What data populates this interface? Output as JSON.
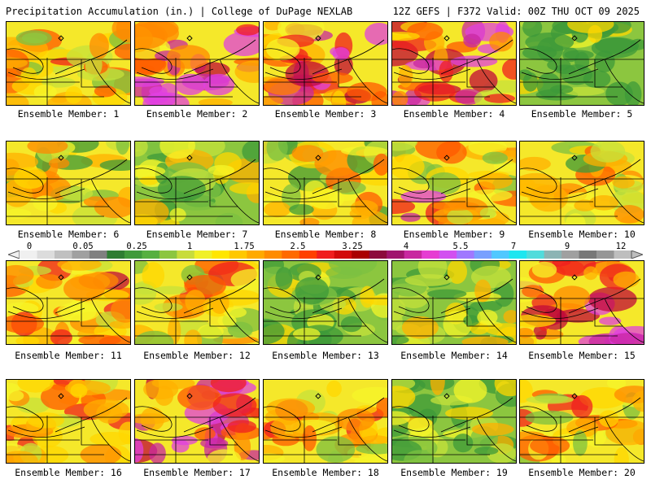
{
  "header": {
    "left_title": "Precipitation Accumulation (in.) | College of DuPage NEXLAB",
    "right_title": "12Z GEFS | F372 Valid: 00Z THU OCT 09 2025"
  },
  "members": [
    {
      "caption": "Ensemble Member: 1",
      "intensity": 0.55,
      "fill": "mixed"
    },
    {
      "caption": "Ensemble Member: 2",
      "intensity": 0.95,
      "fill": "heavy-band"
    },
    {
      "caption": "Ensemble Member: 3",
      "intensity": 0.9,
      "fill": "heavy-band"
    },
    {
      "caption": "Ensemble Member: 4",
      "intensity": 0.8,
      "fill": "heavy-band"
    },
    {
      "caption": "Ensemble Member: 5",
      "intensity": 0.15,
      "fill": "green"
    },
    {
      "caption": "Ensemble Member: 6",
      "intensity": 0.3,
      "fill": "mixed"
    },
    {
      "caption": "Ensemble Member: 7",
      "intensity": 0.3,
      "fill": "green"
    },
    {
      "caption": "Ensemble Member: 8",
      "intensity": 0.35,
      "fill": "mixed"
    },
    {
      "caption": "Ensemble Member: 9",
      "intensity": 0.5,
      "fill": "southwest-max"
    },
    {
      "caption": "Ensemble Member: 10",
      "intensity": 0.45,
      "fill": "mixed"
    },
    {
      "caption": "Ensemble Member: 11",
      "intensity": 0.7,
      "fill": "mixed"
    },
    {
      "caption": "Ensemble Member: 12",
      "intensity": 0.55,
      "fill": "mixed"
    },
    {
      "caption": "Ensemble Member: 13",
      "intensity": 0.3,
      "fill": "green"
    },
    {
      "caption": "Ensemble Member: 14",
      "intensity": 0.35,
      "fill": "green"
    },
    {
      "caption": "Ensemble Member: 15",
      "intensity": 0.95,
      "fill": "southeast-max"
    },
    {
      "caption": "Ensemble Member: 16",
      "intensity": 0.7,
      "fill": "mixed"
    },
    {
      "caption": "Ensemble Member: 17",
      "intensity": 0.95,
      "fill": "heavy-band"
    },
    {
      "caption": "Ensemble Member: 18",
      "intensity": 0.65,
      "fill": "mixed"
    },
    {
      "caption": "Ensemble Member: 19",
      "intensity": 0.4,
      "fill": "green"
    },
    {
      "caption": "Ensemble Member: 20",
      "intensity": 0.55,
      "fill": "mixed"
    }
  ],
  "legend": {
    "unit": "in.",
    "labels": [
      "0",
      "0.05",
      "0.25",
      "1",
      "1.75",
      "2.5",
      "3.25",
      "4",
      "5.5",
      "7",
      "9",
      "12"
    ],
    "colors": [
      "#f0f0f0",
      "#dcdcdc",
      "#c0c0c0",
      "#a0a0a0",
      "#808080",
      "#2e7d32",
      "#3f9a3a",
      "#56b040",
      "#8cc63f",
      "#c8dc3c",
      "#f0f028",
      "#ffe600",
      "#ffc800",
      "#ffaa00",
      "#ff8c00",
      "#ff6a00",
      "#ff4000",
      "#f01e1e",
      "#d20a0a",
      "#aa0000",
      "#8c0a3c",
      "#a0146e",
      "#c828a0",
      "#e63cd2",
      "#d250f0",
      "#a078ff",
      "#78a0ff",
      "#50c8ff",
      "#1ee6f0",
      "#50dcdc",
      "#8cb4b4",
      "#a0a0a0",
      "#787878",
      "#969696",
      "#bebebe"
    ]
  }
}
